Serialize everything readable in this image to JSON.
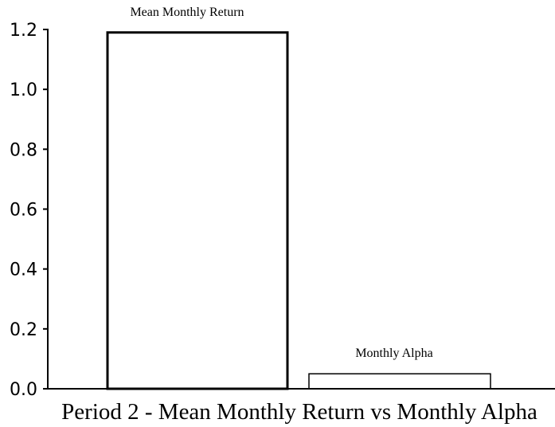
{
  "chart_data": {
    "type": "bar",
    "title": "Period 2 - Mean Monthly Return vs Monthly Alpha",
    "xlabel": "",
    "ylabel": "",
    "categories": [
      "Mean Monthly Return",
      "Monthly Alpha"
    ],
    "values": [
      1.19,
      0.05
    ],
    "ylim": [
      0,
      1.2
    ],
    "yticks": [
      "0.0",
      "0.2",
      "0.4",
      "0.6",
      "0.8",
      "1.0",
      "1.2"
    ],
    "grid": false,
    "legend": "none",
    "colors": {
      "bar_fill": "#ffffff",
      "bar_stroke": "#000000",
      "axis": "#000000",
      "text": "#000000"
    }
  }
}
